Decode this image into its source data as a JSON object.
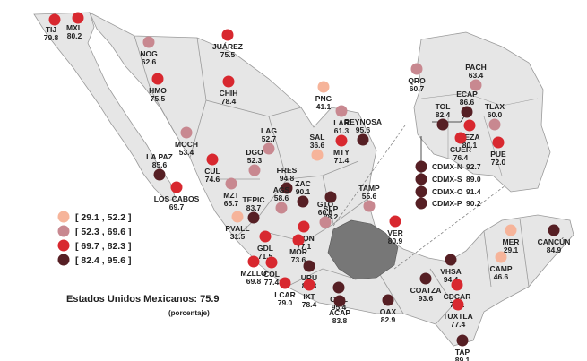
{
  "colors": {
    "bin1": "#f6b49a",
    "bin2": "#c88890",
    "bin3": "#d8282f",
    "bin4": "#561f24",
    "land": "#e6e6e6",
    "border": "#9a9a9a",
    "highlight": "#777777"
  },
  "legend": {
    "items": [
      {
        "label": "[ 29.1 , 52.2 ]",
        "bin": 1
      },
      {
        "label": "[ 52.3 , 69.6 ]",
        "bin": 2
      },
      {
        "label": "[ 69.7 , 82.3 ]",
        "bin": 3
      },
      {
        "label": "[ 82.4 , 95.6 ]",
        "bin": 4
      }
    ]
  },
  "footer": {
    "national": "Estados Unidos Mexicanos: 75.9",
    "unit": "(porcentaje)"
  },
  "cities": [
    {
      "name": "TIJ",
      "value": "79.8",
      "bin": 3
    },
    {
      "name": "MXL",
      "value": "80.2",
      "bin": 3
    },
    {
      "name": "NOG",
      "value": "62.6",
      "bin": 2
    },
    {
      "name": "JUÁREZ",
      "value": "75.5",
      "bin": 3
    },
    {
      "name": "HMO",
      "value": "75.5",
      "bin": 3
    },
    {
      "name": "CHIH",
      "value": "78.4",
      "bin": 3
    },
    {
      "name": "PNG",
      "value": "41.1",
      "bin": 1
    },
    {
      "name": "LAR",
      "value": "61.3",
      "bin": 2
    },
    {
      "name": "REYNOSA",
      "value": "95.6",
      "bin": 4
    },
    {
      "name": "SAL",
      "value": "36.6",
      "bin": 1
    },
    {
      "name": "MTY",
      "value": "71.4",
      "bin": 3
    },
    {
      "name": "LAG",
      "value": "52.7",
      "bin": 2
    },
    {
      "name": "MOCH",
      "value": "53.4",
      "bin": 2
    },
    {
      "name": "CUL",
      "value": "74.6",
      "bin": 3
    },
    {
      "name": "DGO",
      "value": "52.3",
      "bin": 2
    },
    {
      "name": "LA PAZ",
      "value": "85.6",
      "bin": 4
    },
    {
      "name": "LOS CABOS",
      "value": "69.7",
      "bin": 3
    },
    {
      "name": "MZT",
      "value": "65.7",
      "bin": 2
    },
    {
      "name": "FRES",
      "value": "94.8",
      "bin": 4
    },
    {
      "name": "ZAC",
      "value": "90.1",
      "bin": 4
    },
    {
      "name": "SLP",
      "value": "88.2",
      "bin": 4
    },
    {
      "name": "TEPIC",
      "value": "83.7",
      "bin": 4
    },
    {
      "name": "AGS",
      "value": "58.6",
      "bin": 2
    },
    {
      "name": "GTO",
      "value": "60.6",
      "bin": 2
    },
    {
      "name": "TAMP",
      "value": "55.6",
      "bin": 2
    },
    {
      "name": "PVALL",
      "value": "31.5",
      "bin": 1
    },
    {
      "name": "GDL",
      "value": "71.5",
      "bin": 3
    },
    {
      "name": "LEON",
      "value": "77.1",
      "bin": 3
    },
    {
      "name": "MOR",
      "value": "73.6",
      "bin": 3
    },
    {
      "name": "MZLLO",
      "value": "69.8",
      "bin": 3
    },
    {
      "name": "COL",
      "value": "77.4",
      "bin": 3
    },
    {
      "name": "URU",
      "value": "86.3",
      "bin": 4
    },
    {
      "name": "LCAR",
      "value": "79.0",
      "bin": 3
    },
    {
      "name": "IXT",
      "value": "78.4",
      "bin": 3
    },
    {
      "name": "CHIL",
      "value": "95.4",
      "bin": 4
    },
    {
      "name": "ACAP",
      "value": "83.8",
      "bin": 4
    },
    {
      "name": "OAX",
      "value": "82.9",
      "bin": 4
    },
    {
      "name": "VER",
      "value": "80.9",
      "bin": 3
    },
    {
      "name": "COATZA",
      "value": "93.6",
      "bin": 4
    },
    {
      "name": "VHSA",
      "value": "94.4",
      "bin": 4
    },
    {
      "name": "CDCAR",
      "value": "78.1",
      "bin": 3
    },
    {
      "name": "TUXTLA",
      "value": "77.4",
      "bin": 3
    },
    {
      "name": "TAP",
      "value": "89.1",
      "bin": 4
    },
    {
      "name": "MER",
      "value": "29.1",
      "bin": 1
    },
    {
      "name": "CAMP",
      "value": "46.6",
      "bin": 1
    },
    {
      "name": "CANCÚN",
      "value": "84.9",
      "bin": 4
    },
    {
      "name": "QRO",
      "value": "60.7",
      "bin": 2
    },
    {
      "name": "PACH",
      "value": "63.4",
      "bin": 2
    },
    {
      "name": "ECAP",
      "value": "86.6",
      "bin": 4
    },
    {
      "name": "TLAX",
      "value": "60.0",
      "bin": 2
    },
    {
      "name": "TOL",
      "value": "82.4",
      "bin": 4
    },
    {
      "name": "NEZA",
      "value": "80.1",
      "bin": 3
    },
    {
      "name": "CUER",
      "value": "76.4",
      "bin": 3
    },
    {
      "name": "PUE",
      "value": "72.0",
      "bin": 3
    },
    {
      "name": "CDMX-N",
      "value": "92.7",
      "bin": 4
    },
    {
      "name": "CDMX-S",
      "value": "89.0",
      "bin": 4
    },
    {
      "name": "CDMX-O",
      "value": "91.4",
      "bin": 4
    },
    {
      "name": "CDMX-P",
      "value": "90.2",
      "bin": 4
    }
  ]
}
